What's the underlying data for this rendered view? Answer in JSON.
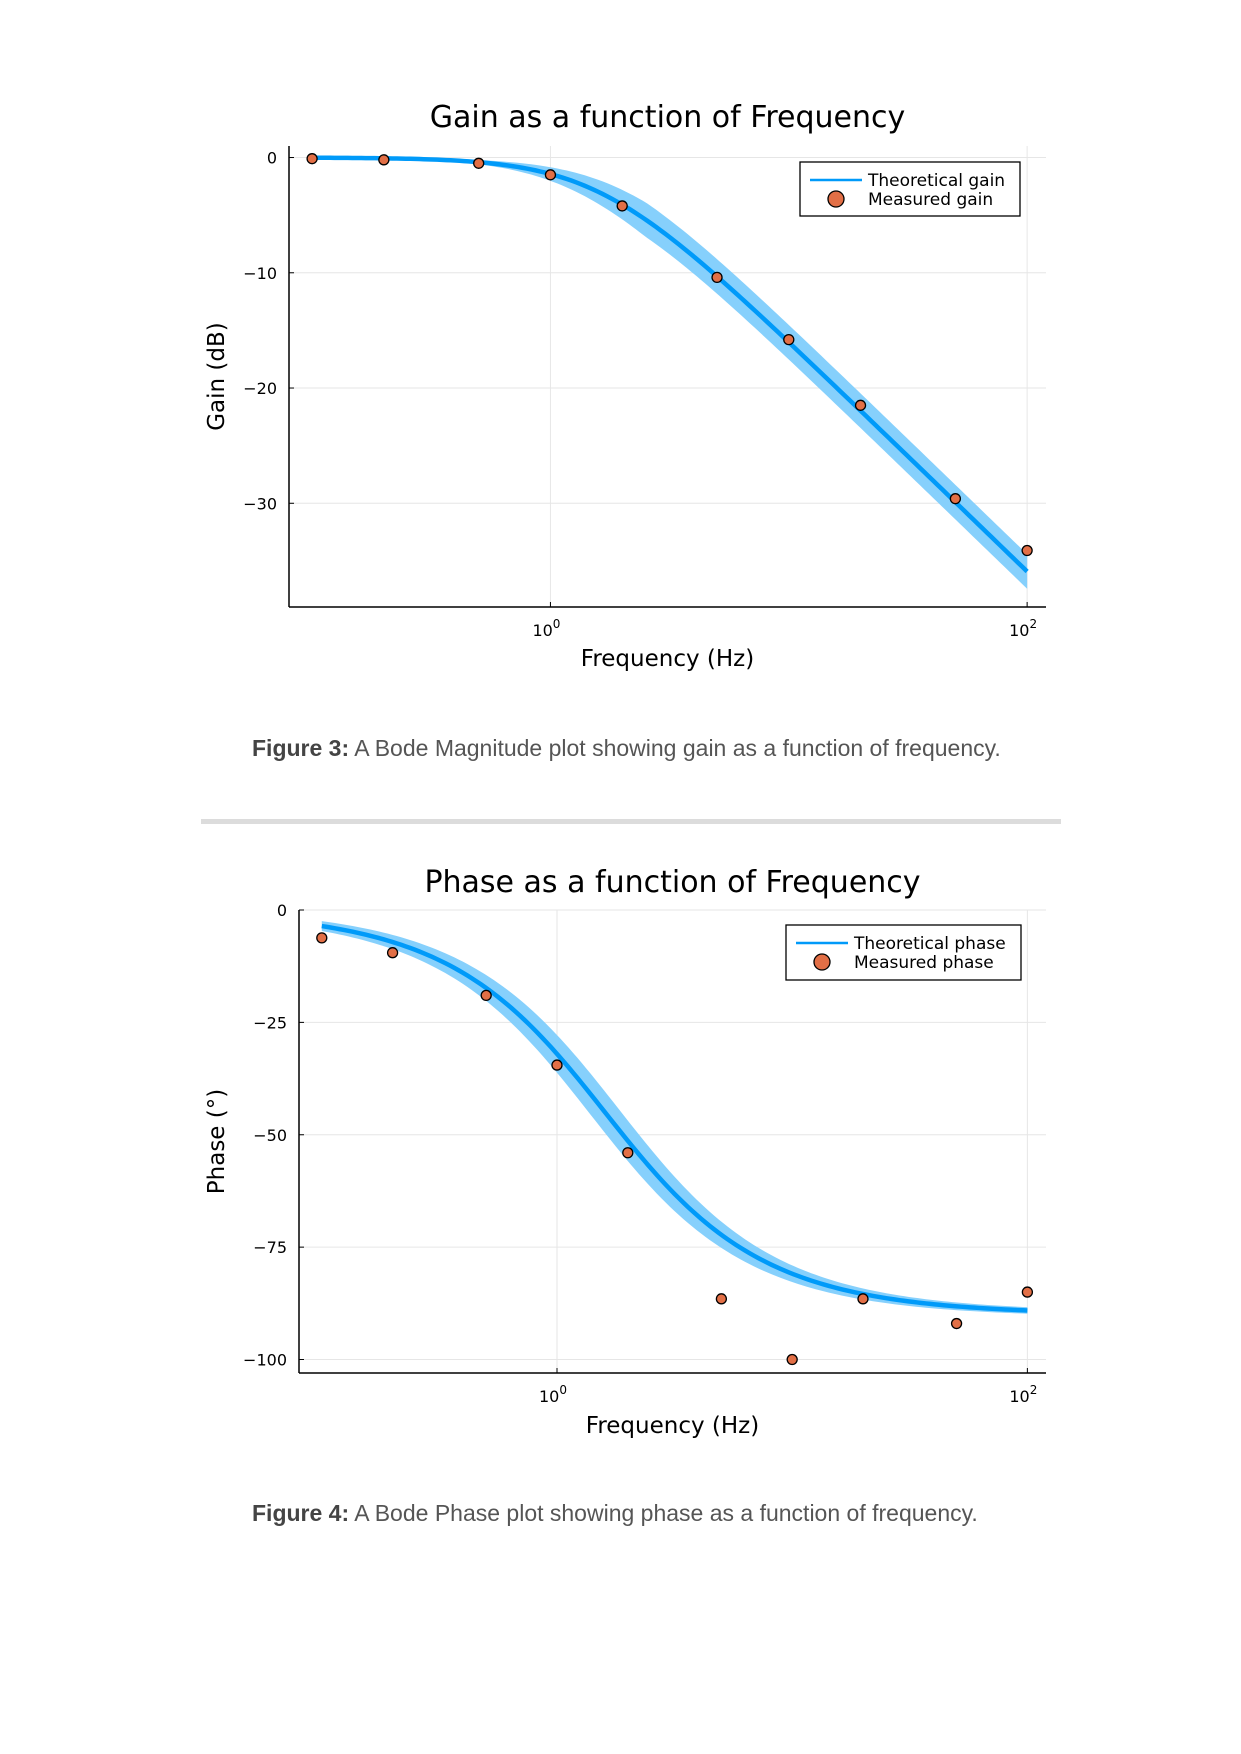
{
  "chart_data": [
    {
      "type": "line",
      "title": "Gain as a function of Frequency",
      "xlabel": "Frequency (Hz)",
      "ylabel": "Gain (dB)",
      "x_scale": "log",
      "xlim": [
        0.08,
        120
      ],
      "ylim": [
        -39,
        1
      ],
      "xticks": [
        {
          "value": 1,
          "base": "10",
          "exp": "0"
        },
        {
          "value": 100,
          "base": "10",
          "exp": "2"
        }
      ],
      "yticks": [
        0,
        -10,
        -20,
        -30
      ],
      "ytick_labels": [
        "0",
        "−10",
        "−20",
        "−30"
      ],
      "grid": true,
      "legend_position": "top-right",
      "series": [
        {
          "name": "Theoretical gain",
          "kind": "line",
          "model": "first-order-lowpass-gain",
          "cutoff_hz": 1.6,
          "band_db": 1.5,
          "color": "#009af9",
          "band_color": "#80cdfc"
        },
        {
          "name": "Measured gain",
          "kind": "scatter",
          "color": "#e26f46",
          "x": [
            0.1,
            0.2,
            0.5,
            1.0,
            2.0,
            5.0,
            10.0,
            20.0,
            50.0,
            100.0
          ],
          "y": [
            -0.1,
            -0.2,
            -0.5,
            -1.5,
            -4.2,
            -10.4,
            -15.8,
            -21.5,
            -29.6,
            -34.1
          ]
        }
      ]
    },
    {
      "type": "line",
      "title": "Phase as a function of Frequency",
      "xlabel": "Frequency (Hz)",
      "ylabel": "Phase (°)",
      "x_scale": "log",
      "xlim": [
        0.08,
        120
      ],
      "ylim": [
        -103,
        0
      ],
      "xticks": [
        {
          "value": 1,
          "base": "10",
          "exp": "0"
        },
        {
          "value": 100,
          "base": "10",
          "exp": "2"
        }
      ],
      "yticks": [
        0,
        -25,
        -50,
        -75,
        -100
      ],
      "ytick_labels": [
        "0",
        "−25",
        "−50",
        "−75",
        "−100"
      ],
      "grid": true,
      "legend_position": "top-right",
      "series": [
        {
          "name": "Theoretical phase",
          "kind": "line",
          "model": "first-order-lowpass-phase",
          "cutoff_hz": 1.6,
          "band_deg": 4,
          "color": "#009af9",
          "band_color": "#80cdfc"
        },
        {
          "name": "Measured phase",
          "kind": "scatter",
          "color": "#e26f46",
          "x": [
            0.1,
            0.2,
            0.5,
            1.0,
            2.0,
            5.0,
            10.0,
            20.0,
            50.0,
            100.0
          ],
          "y": [
            -6.2,
            -9.5,
            -19.0,
            -34.5,
            -54.0,
            -86.5,
            -100.0,
            -86.5,
            -92.0,
            -85.0
          ]
        }
      ]
    }
  ],
  "captions": {
    "fig3_label": "Figure 3:",
    "fig3_text": " A Bode Magnitude plot showing gain as a function of frequency.",
    "fig4_label": "Figure 4:",
    "fig4_text": " A Bode Phase plot showing phase as a function of frequency."
  }
}
